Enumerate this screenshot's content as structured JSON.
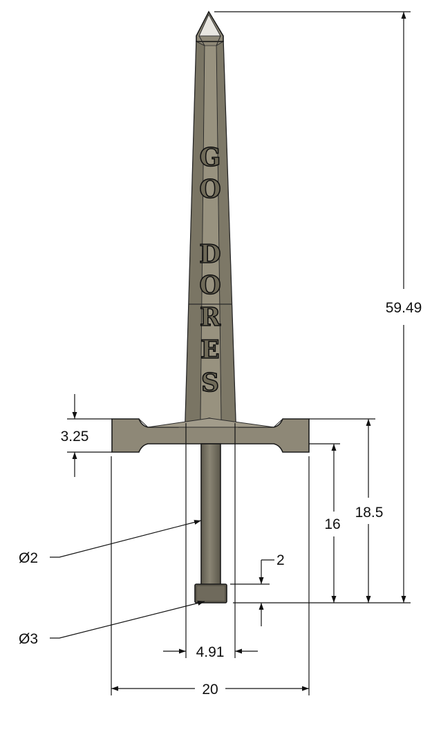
{
  "drawing": {
    "engraving_letters": [
      "G",
      "O",
      "D",
      "O",
      "R",
      "E",
      "S"
    ],
    "engraving_text": "GO DORES",
    "dimensions": {
      "overall_height": "59.49",
      "guard_thickness": "3.25",
      "guard_to_bottom": "18.5",
      "pin_length": "16",
      "cap_height": "2",
      "pin_diameter": "Ø2",
      "cap_diameter": "Ø3",
      "blade_width": "4.91",
      "guard_width": "20"
    },
    "colors": {
      "metal": "#8e8877",
      "metal_light": "#a29c8b",
      "metal_dark": "#6b6656",
      "outline": "#1a1a1a",
      "tip_highlight": "#e8e6e0"
    }
  }
}
